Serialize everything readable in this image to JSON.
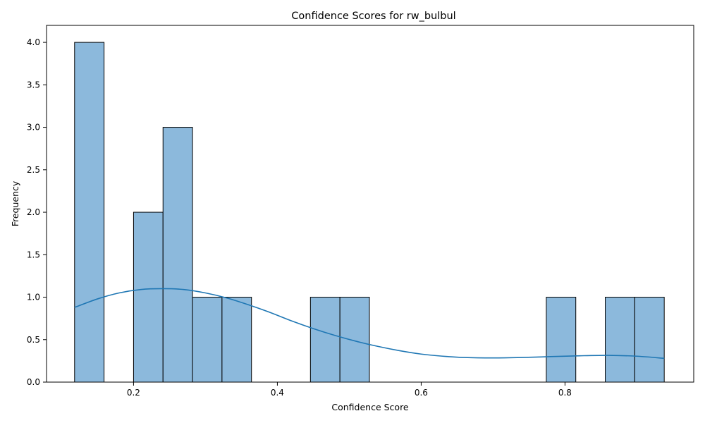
{
  "chart_data": {
    "type": "histogram",
    "title": "Confidence Scores for rw_bulbul",
    "xlabel": "Confidence Score",
    "ylabel": "Frequency",
    "xlim": [
      0.079,
      0.979
    ],
    "ylim": [
      0,
      4.2
    ],
    "xticks": [
      {
        "value": 0.2,
        "label": "0.2"
      },
      {
        "value": 0.4,
        "label": "0.4"
      },
      {
        "value": 0.6,
        "label": "0.6"
      },
      {
        "value": 0.8,
        "label": "0.8"
      }
    ],
    "yticks": [
      {
        "value": 0.0,
        "label": "0.0"
      },
      {
        "value": 0.5,
        "label": "0.5"
      },
      {
        "value": 1.0,
        "label": "1.0"
      },
      {
        "value": 1.5,
        "label": "1.5"
      },
      {
        "value": 2.0,
        "label": "2.0"
      },
      {
        "value": 2.5,
        "label": "2.5"
      },
      {
        "value": 3.0,
        "label": "3.0"
      },
      {
        "value": 3.5,
        "label": "3.5"
      },
      {
        "value": 4.0,
        "label": "4.0"
      }
    ],
    "bins": [
      {
        "x0": 0.118,
        "x1": 0.159,
        "count": 4
      },
      {
        "x0": 0.159,
        "x1": 0.2,
        "count": 0
      },
      {
        "x0": 0.2,
        "x1": 0.241,
        "count": 2
      },
      {
        "x0": 0.241,
        "x1": 0.282,
        "count": 3
      },
      {
        "x0": 0.282,
        "x1": 0.323,
        "count": 1
      },
      {
        "x0": 0.323,
        "x1": 0.364,
        "count": 1
      },
      {
        "x0": 0.364,
        "x1": 0.405,
        "count": 0
      },
      {
        "x0": 0.405,
        "x1": 0.446,
        "count": 0
      },
      {
        "x0": 0.446,
        "x1": 0.487,
        "count": 1
      },
      {
        "x0": 0.487,
        "x1": 0.528,
        "count": 1
      },
      {
        "x0": 0.528,
        "x1": 0.569,
        "count": 0
      },
      {
        "x0": 0.569,
        "x1": 0.61,
        "count": 0
      },
      {
        "x0": 0.61,
        "x1": 0.651,
        "count": 0
      },
      {
        "x0": 0.651,
        "x1": 0.692,
        "count": 0
      },
      {
        "x0": 0.692,
        "x1": 0.733,
        "count": 0
      },
      {
        "x0": 0.733,
        "x1": 0.774,
        "count": 0
      },
      {
        "x0": 0.774,
        "x1": 0.815,
        "count": 1
      },
      {
        "x0": 0.815,
        "x1": 0.856,
        "count": 0
      },
      {
        "x0": 0.856,
        "x1": 0.897,
        "count": 1
      },
      {
        "x0": 0.897,
        "x1": 0.938,
        "count": 1
      }
    ],
    "kde": {
      "x": [
        0.118,
        0.15,
        0.18,
        0.21,
        0.24,
        0.27,
        0.3,
        0.33,
        0.36,
        0.39,
        0.42,
        0.45,
        0.48,
        0.51,
        0.54,
        0.57,
        0.6,
        0.63,
        0.66,
        0.7,
        0.74,
        0.78,
        0.82,
        0.86,
        0.9,
        0.938
      ],
      "y": [
        0.88,
        0.98,
        1.05,
        1.09,
        1.1,
        1.09,
        1.05,
        0.99,
        0.91,
        0.82,
        0.72,
        0.63,
        0.55,
        0.48,
        0.42,
        0.37,
        0.33,
        0.305,
        0.29,
        0.285,
        0.29,
        0.3,
        0.31,
        0.315,
        0.305,
        0.28
      ]
    },
    "grid": false,
    "colors": {
      "bar_fill": "#8cb9dc",
      "bar_edge": "#000000",
      "kde_line": "#1f77b4"
    }
  }
}
